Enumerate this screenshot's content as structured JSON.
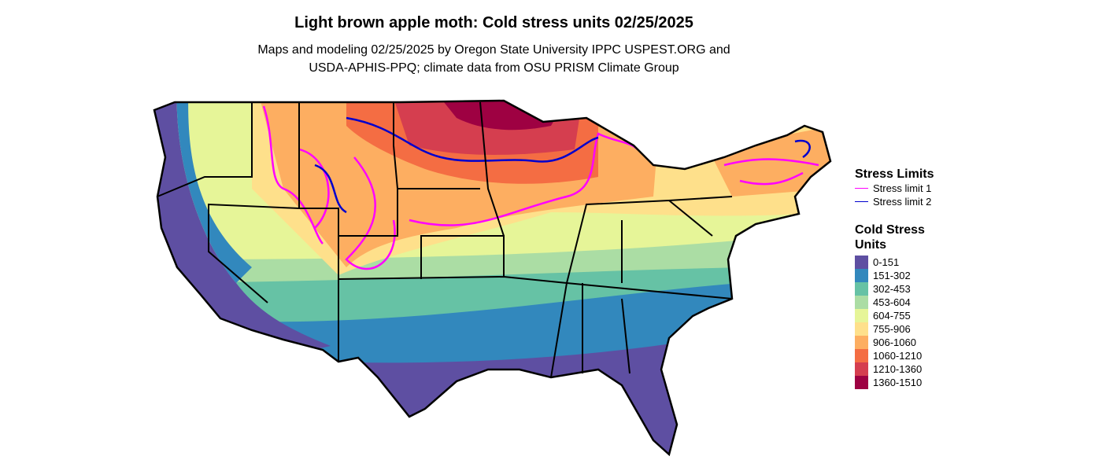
{
  "title": "Light brown apple moth: Cold stress units 02/25/2025",
  "subtitle": [
    "Maps and modeling 02/25/2025 by Oregon State University IPPC USPEST.ORG and",
    "USDA-APHIS-PPQ; climate data from OSU PRISM Climate Group"
  ],
  "legend": {
    "stress_limits": {
      "title": "Stress Limits",
      "items": [
        {
          "label": "Stress limit 1",
          "color": "#ff00ff"
        },
        {
          "label": "Stress limit 2",
          "color": "#0000cd"
        }
      ]
    },
    "cold_stress": {
      "title": "Cold Stress Units",
      "items": [
        {
          "label": "0-151",
          "color": "#5e4fa2"
        },
        {
          "label": "151-302",
          "color": "#3288bd"
        },
        {
          "label": "302-453",
          "color": "#66c2a5"
        },
        {
          "label": "453-604",
          "color": "#abdda4"
        },
        {
          "label": "604-755",
          "color": "#e6f598"
        },
        {
          "label": "755-906",
          "color": "#fee08b"
        },
        {
          "label": "906-1060",
          "color": "#fdae61"
        },
        {
          "label": "1060-1210",
          "color": "#f46d43"
        },
        {
          "label": "1210-1360",
          "color": "#d53e4f"
        },
        {
          "label": "1360-1510",
          "color": "#9e0142"
        }
      ]
    }
  }
}
